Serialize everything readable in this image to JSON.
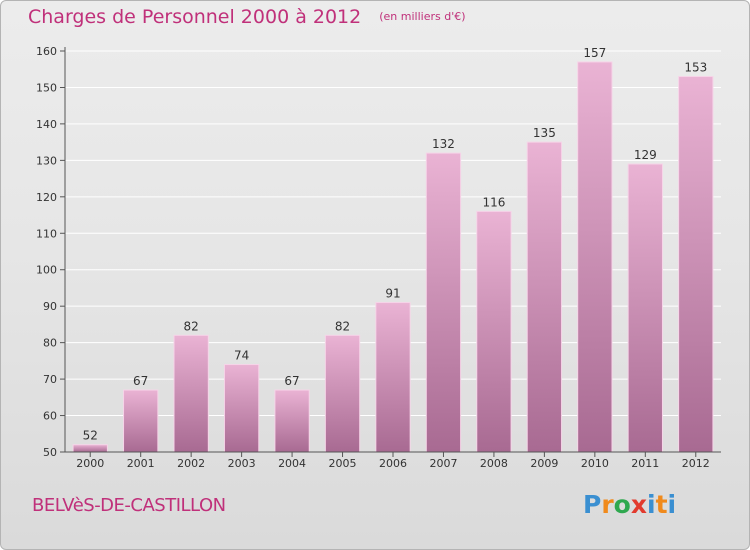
{
  "header": {
    "title": "Charges de Personnel 2000 à 2012",
    "subtitle": "(en milliers d'€)"
  },
  "footer": {
    "place": "BELVèS-DE-CASTILLON",
    "brand": {
      "letters": [
        "P",
        "r",
        "o",
        "x",
        "i",
        "t",
        "i"
      ],
      "colors": [
        "#3a8fd1",
        "#f08a1c",
        "#2fa84f",
        "#e23b2e",
        "#3a8fd1",
        "#f08a1c",
        "#3a8fd1"
      ]
    }
  },
  "chart_data": {
    "type": "bar",
    "title": "Charges de Personnel 2000 à 2012",
    "subtitle": "(en milliers d'€)",
    "categories": [
      "2000",
      "2001",
      "2002",
      "2003",
      "2004",
      "2005",
      "2006",
      "2007",
      "2008",
      "2009",
      "2010",
      "2011",
      "2012"
    ],
    "values": [
      52,
      67,
      82,
      74,
      67,
      82,
      91,
      132,
      116,
      135,
      157,
      129,
      153
    ],
    "data_labels": [
      "52",
      "67",
      "82",
      "74",
      "67",
      "82",
      "91",
      "132",
      "116",
      "135",
      "157",
      "129",
      "153"
    ],
    "ylim": [
      50,
      160
    ],
    "yticks": [
      50,
      60,
      70,
      80,
      90,
      100,
      110,
      120,
      130,
      140,
      150,
      160
    ],
    "ytick_labels": [
      "50",
      "60",
      "70",
      "80",
      "90",
      "100",
      "110",
      "120",
      "130",
      "140",
      "150",
      "160"
    ],
    "xlabel": "",
    "ylabel": "",
    "grid": true,
    "colors": {
      "bar_top": "#eab3d4",
      "bar_bottom": "#a86a92",
      "bar_edge": "#f6d4e8",
      "grid": "#ffffff",
      "axis": "#555555",
      "text": "#333333",
      "accent": "#c0307a"
    }
  }
}
